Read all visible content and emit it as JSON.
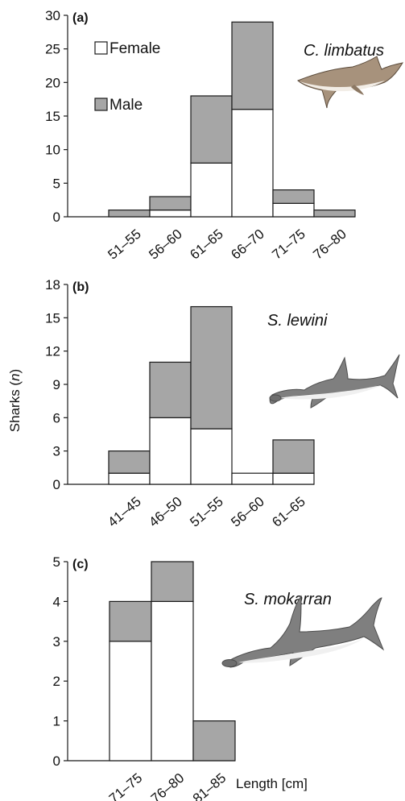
{
  "figure": {
    "ylabel_prefix": "Sharks (",
    "ylabel_n": "n",
    "ylabel_suffix": ")",
    "xlabel": "Length [cm]",
    "legend": {
      "female": "Female",
      "male": "Male"
    }
  },
  "colors": {
    "female": "#ffffff",
    "male": "#a6a6a6",
    "stroke": "#1a1a1a",
    "shark_body": "#7f7f7f",
    "shark_belly": "#f0f0f0"
  },
  "chart_data": [
    {
      "type": "bar",
      "stacked": true,
      "panel_label": "(a)",
      "species": "C. limbatus",
      "categories": [
        "51–55",
        "56–60",
        "61–65",
        "66–70",
        "71–75",
        "76–80"
      ],
      "series": [
        {
          "name": "Female",
          "values": [
            0,
            1,
            8,
            16,
            2,
            0
          ]
        },
        {
          "name": "Male",
          "values": [
            1,
            2,
            10,
            13,
            2,
            1
          ]
        }
      ],
      "ylim": [
        0,
        30
      ],
      "yticks": [
        0,
        5,
        10,
        15,
        20,
        25,
        30
      ],
      "legend": "top-left"
    },
    {
      "type": "bar",
      "stacked": true,
      "panel_label": "(b)",
      "species": "S. lewini",
      "categories": [
        "41–45",
        "46–50",
        "51–55",
        "56–60",
        "61–65"
      ],
      "series": [
        {
          "name": "Female",
          "values": [
            1,
            6,
            5,
            1,
            1
          ]
        },
        {
          "name": "Male",
          "values": [
            2,
            5,
            11,
            0,
            3
          ]
        }
      ],
      "ylim": [
        0,
        18
      ],
      "yticks": [
        0,
        3,
        6,
        9,
        12,
        15,
        18
      ]
    },
    {
      "type": "bar",
      "stacked": true,
      "panel_label": "(c)",
      "species": "S. mokarran",
      "categories": [
        "71–75",
        "76–80",
        "81–85"
      ],
      "series": [
        {
          "name": "Female",
          "values": [
            3,
            4,
            0
          ]
        },
        {
          "name": "Male",
          "values": [
            1,
            1,
            1
          ]
        }
      ],
      "ylim": [
        0,
        5
      ],
      "yticks": [
        0,
        1,
        2,
        3,
        4,
        5
      ]
    }
  ]
}
